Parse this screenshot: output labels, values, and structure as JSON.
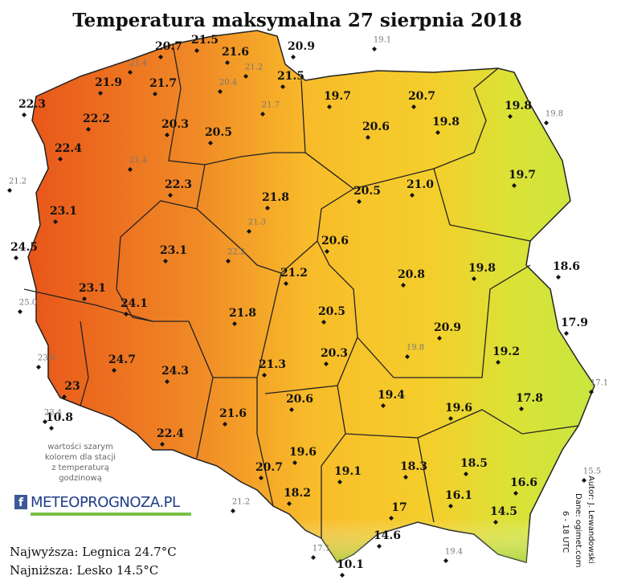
{
  "title": "Temperatura maksymalna 27 sierpnia 2018",
  "stations": [
    {
      "temp": 20.7,
      "gray": false
    },
    {
      "temp": 21.5,
      "gray": false
    },
    {
      "temp": 21.6,
      "gray": false
    },
    {
      "temp": 20.9,
      "gray": false
    },
    {
      "temp": 21.9,
      "gray": false
    },
    {
      "temp": 21.7,
      "gray": false
    },
    {
      "temp": 21.5,
      "gray": false
    },
    {
      "temp": 22.3,
      "gray": false
    },
    {
      "temp": 22.2,
      "gray": false
    },
    {
      "temp": 19.7,
      "gray": false
    },
    {
      "temp": 20.7,
      "gray": false
    },
    {
      "temp": 19.8,
      "gray": false
    },
    {
      "temp": 20.3,
      "gray": false
    },
    {
      "temp": 20.5,
      "gray": false
    },
    {
      "temp": 20.6,
      "gray": false
    },
    {
      "temp": 19.8,
      "gray": false
    },
    {
      "temp": 22.4,
      "gray": false
    },
    {
      "temp": 19.7,
      "gray": false
    },
    {
      "temp": 22.3,
      "gray": false
    },
    {
      "temp": 21.8,
      "gray": false
    },
    {
      "temp": 20.5,
      "gray": false
    },
    {
      "temp": {
        "value": 21,
        "label": "21.0"
      },
      "gray": false
    },
    {
      "temp": 23.1,
      "gray": false
    },
    {
      "temp": 20.6,
      "gray": false
    },
    {
      "temp": 24.5,
      "gray": false
    },
    {
      "temp": 23.1,
      "gray": false
    },
    {
      "temp": 21.2,
      "gray": false
    },
    {
      "temp": 20.8,
      "gray": false
    },
    {
      "temp": 19.8,
      "gray": false
    },
    {
      "temp": 18.6,
      "gray": false
    },
    {
      "temp": 23.1,
      "gray": false
    },
    {
      "temp": 24.1,
      "gray": false
    },
    {
      "temp": 20.5,
      "gray": false
    },
    {
      "temp": 21.8,
      "gray": false
    },
    {
      "temp": 20.9,
      "gray": false
    },
    {
      "temp": 17.9,
      "gray": false
    },
    {
      "temp": 24.7,
      "gray": false
    },
    {
      "temp": 24.3,
      "gray": false
    },
    {
      "temp": 20.3,
      "gray": false
    },
    {
      "temp": 19.2,
      "gray": false
    },
    {
      "temp": 21.3,
      "gray": false
    },
    {
      "temp": 23.0,
      "gray": false
    },
    {
      "temp": 19.4,
      "gray": false
    },
    {
      "temp": 20.6,
      "gray": false
    },
    {
      "temp": 17.8,
      "gray": false
    },
    {
      "temp": 19.6,
      "gray": false
    },
    {
      "temp": 10.8,
      "gray": false
    },
    {
      "temp": 21.6,
      "gray": false
    },
    {
      "temp": 22.4,
      "gray": false
    },
    {
      "temp": 19.6,
      "gray": false
    },
    {
      "temp": 19.1,
      "gray": false
    },
    {
      "temp": 18.3,
      "gray": false
    },
    {
      "temp": 18.5,
      "gray": false
    },
    {
      "temp": 20.7,
      "gray": false
    },
    {
      "temp": 16.6,
      "gray": false
    },
    {
      "temp": 16.1,
      "gray": false
    },
    {
      "temp": 18.2,
      "gray": false
    },
    {
      "temp": 17.0,
      "gray": false
    },
    {
      "temp": 14.5,
      "gray": false
    },
    {
      "temp": 14.6,
      "gray": false
    },
    {
      "temp": 10.1,
      "gray": false
    },
    {
      "temp": 19.1,
      "gray": true
    },
    {
      "temp": 21.4,
      "gray": true
    },
    {
      "temp": 21.2,
      "gray": true
    },
    {
      "temp": 20.4,
      "gray": true
    },
    {
      "temp": 21.7,
      "gray": true
    },
    {
      "temp": 19.8,
      "gray": true
    },
    {
      "temp": 21.4,
      "gray": true
    },
    {
      "temp": 21.2,
      "gray": true
    },
    {
      "temp": 21.3,
      "gray": true
    },
    {
      "temp": 22.2,
      "gray": true
    },
    {
      "temp": {
        "value": 25,
        "label": "25.0"
      },
      "gray": true
    },
    {
      "temp": 19.8,
      "gray": true
    },
    {
      "temp": 23.8,
      "gray": true
    },
    {
      "temp": 17.1,
      "gray": true
    },
    {
      "temp": 23.4,
      "gray": true
    },
    {
      "temp": 15.5,
      "gray": true
    },
    {
      "temp": 21.2,
      "gray": true
    },
    {
      "temp": 17.1,
      "gray": true
    },
    {
      "temp": 19.4,
      "gray": true
    }
  ],
  "note": [
    "wartości szarym",
    "kolorem dla stacji",
    "z temperaturą",
    "godzinową"
  ],
  "logo": "METEOPROGNOZA.PL",
  "highest": "Najwyższa: Legnica 24.7°C",
  "lowest": "Najniższa: Lesko 14.5°C",
  "credits": [
    "Autor: J. Lewandowski",
    "Dane: ogimet.com",
    "6 - 18 UTC"
  ]
}
